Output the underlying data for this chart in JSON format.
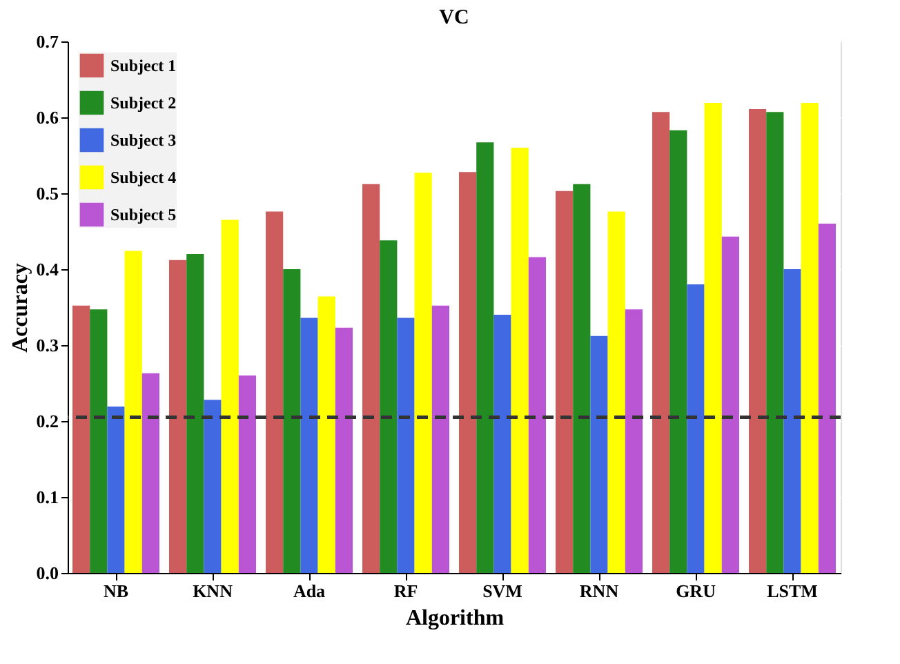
{
  "chart_data": {
    "type": "bar",
    "title": "VC",
    "xlabel": "Algorithm",
    "ylabel": "Accuracy",
    "categories": [
      "NB",
      "KNN",
      "Ada",
      "RF",
      "SVM",
      "RNN",
      "GRU",
      "LSTM"
    ],
    "series": [
      {
        "name": "Subject 1",
        "color": "#cd5c5c",
        "values": [
          0.352,
          0.412,
          0.476,
          0.512,
          0.528,
          0.503,
          0.607,
          0.611
        ]
      },
      {
        "name": "Subject 2",
        "color": "#228b22",
        "values": [
          0.347,
          0.42,
          0.4,
          0.438,
          0.567,
          0.512,
          0.583,
          0.607
        ]
      },
      {
        "name": "Subject 3",
        "color": "#4169e1",
        "values": [
          0.219,
          0.228,
          0.336,
          0.336,
          0.34,
          0.312,
          0.38,
          0.4
        ]
      },
      {
        "name": "Subject 4",
        "color": "#ffff00",
        "values": [
          0.424,
          0.465,
          0.364,
          0.527,
          0.56,
          0.476,
          0.619,
          0.619
        ]
      },
      {
        "name": "Subject 5",
        "color": "#ba55d3",
        "values": [
          0.263,
          0.26,
          0.323,
          0.352,
          0.416,
          0.347,
          0.443,
          0.46
        ]
      }
    ],
    "ylim": [
      0,
      0.7
    ],
    "yticks": [
      {
        "value": 0,
        "label": "0.0"
      },
      {
        "value": 0.1,
        "label": "0.1"
      },
      {
        "value": 0.2,
        "label": "0.2"
      },
      {
        "value": 0.3,
        "label": "0.3"
      },
      {
        "value": 0.4,
        "label": "0.4"
      },
      {
        "value": 0.5,
        "label": "0.5"
      },
      {
        "value": 0.6,
        "label": "0.6"
      },
      {
        "value": 0.7,
        "label": "0.7"
      }
    ],
    "ref_lines": [
      {
        "axis": "y",
        "value": 0.205,
        "color": "#333333",
        "line_style": "dashed"
      }
    ],
    "grid": true,
    "legend": "top left"
  }
}
